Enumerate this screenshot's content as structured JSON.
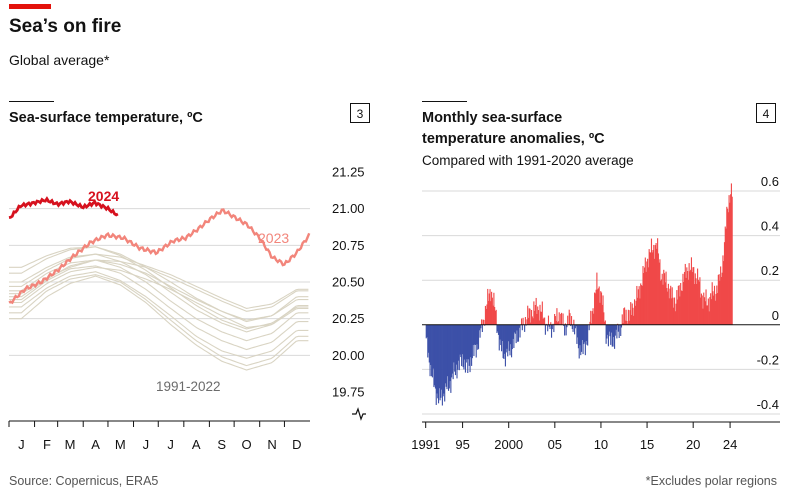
{
  "title": "Sea’s on fire",
  "subtitle": "Global average*",
  "source": "Source: Copernicus, ERA5",
  "footnote": "*Excludes polar regions",
  "colors": {
    "red_2024": "#d6111e",
    "red_2023": "#f2857b",
    "grey_years": "#d9d4c3",
    "positive": "#f04848",
    "negative": "#3c50a8",
    "accent": "#e3120b"
  },
  "chart_data": [
    {
      "type": "line",
      "panel_number": "3",
      "title": "Sea-surface temperature, ºC",
      "ylim": [
        19.75,
        21.25
      ],
      "y_ticks": [
        "21.25",
        "21.00",
        "20.75",
        "20.50",
        "20.25",
        "20.00",
        "19.75"
      ],
      "y_tick_values": [
        21.25,
        21.0,
        20.75,
        20.5,
        20.25,
        20.0,
        19.75
      ],
      "axis_break": true,
      "x_ticks": [
        "J",
        "F",
        "M",
        "A",
        "M",
        "J",
        "J",
        "A",
        "S",
        "O",
        "N",
        "D"
      ],
      "series": [
        {
          "name": "2024",
          "x": [
            1,
            15,
            32,
            46,
            60,
            74,
            91,
            105,
            121,
            134
          ],
          "values": [
            20.93,
            21.02,
            21.04,
            21.06,
            21.03,
            21.05,
            21.01,
            21.04,
            21.0,
            20.95
          ]
        },
        {
          "name": "2023",
          "x": [
            1,
            20,
            40,
            60,
            80,
            100,
            120,
            140,
            160,
            180,
            200,
            215,
            230,
            245,
            260,
            275,
            290,
            305,
            320,
            335,
            350,
            365
          ],
          "values": [
            20.35,
            20.45,
            20.5,
            20.58,
            20.68,
            20.77,
            20.82,
            20.8,
            20.73,
            20.7,
            20.78,
            20.8,
            20.86,
            20.93,
            20.99,
            20.94,
            20.89,
            20.8,
            20.67,
            20.62,
            20.7,
            20.82
          ]
        }
      ],
      "band": {
        "label": "1991-2022"
      },
      "band_lines": [
        [
          20.25,
          20.4,
          20.49,
          20.54,
          20.48,
          20.36,
          20.21,
          20.07,
          19.96,
          19.9,
          19.95,
          20.1
        ],
        [
          20.33,
          20.46,
          20.54,
          20.57,
          20.51,
          20.4,
          20.27,
          20.13,
          20.03,
          19.98,
          20.03,
          20.17
        ],
        [
          20.38,
          20.51,
          20.59,
          20.61,
          20.56,
          20.45,
          20.32,
          20.19,
          20.1,
          20.04,
          20.09,
          20.23
        ],
        [
          20.44,
          20.56,
          20.63,
          20.65,
          20.6,
          20.5,
          20.37,
          20.25,
          20.16,
          20.1,
          20.15,
          20.29
        ],
        [
          20.5,
          20.6,
          20.67,
          20.69,
          20.64,
          20.55,
          20.43,
          20.31,
          20.22,
          20.16,
          20.21,
          20.34
        ],
        [
          20.42,
          20.53,
          20.6,
          20.65,
          20.62,
          20.56,
          20.47,
          20.38,
          20.3,
          20.24,
          20.27,
          20.38
        ],
        [
          20.56,
          20.66,
          20.72,
          20.74,
          20.69,
          20.6,
          20.5,
          20.39,
          20.3,
          20.23,
          20.27,
          20.4
        ],
        [
          20.47,
          20.58,
          20.66,
          20.69,
          20.67,
          20.61,
          20.55,
          20.47,
          20.39,
          20.32,
          20.35,
          20.45
        ],
        [
          20.29,
          20.44,
          20.52,
          20.55,
          20.5,
          20.38,
          20.24,
          20.1,
          19.99,
          19.93,
          19.98,
          20.13
        ],
        [
          20.36,
          20.49,
          20.57,
          20.6,
          20.58,
          20.52,
          20.45,
          20.36,
          20.27,
          20.19,
          20.21,
          20.32
        ],
        [
          20.6,
          20.68,
          20.73,
          20.74,
          20.68,
          20.58,
          20.46,
          20.34,
          20.24,
          20.18,
          20.22,
          20.33
        ],
        [
          20.4,
          20.52,
          20.61,
          20.65,
          20.64,
          20.6,
          20.53,
          20.45,
          20.37,
          20.3,
          20.33,
          20.44
        ]
      ]
    },
    {
      "type": "bar",
      "panel_number": "4",
      "title_lines": [
        "Monthly sea-surface",
        "temperature anomalies, ºC"
      ],
      "subtitle": "Compared with 1991-2020 average",
      "ylim": [
        -0.45,
        0.68
      ],
      "y_ticks": [
        "0.6",
        "0.4",
        "0.2",
        "0",
        "-0.2",
        "-0.4"
      ],
      "y_tick_values": [
        0.6,
        0.4,
        0.2,
        0,
        -0.2,
        -0.4
      ],
      "x_ticks": [
        "1991",
        "95",
        "2000",
        "05",
        "10",
        "15",
        "20",
        "24"
      ],
      "x_tick_years": [
        1991,
        1995,
        2000,
        2005,
        2010,
        2015,
        2020,
        2024
      ],
      "x_range": [
        1990.6,
        2024.75
      ],
      "anomaly_keyframes": {
        "years": [
          1991.0,
          1991.5,
          1992.0,
          1992.5,
          1993.0,
          1993.5,
          1994.0,
          1994.5,
          1995.0,
          1995.5,
          1996.0,
          1996.5,
          1997.0,
          1997.5,
          1998.0,
          1998.5,
          1999.0,
          1999.5,
          2000.0,
          2000.5,
          2001.0,
          2001.5,
          2002.0,
          2002.5,
          2003.0,
          2003.5,
          2004.0,
          2004.5,
          2005.0,
          2005.5,
          2006.0,
          2006.5,
          2007.0,
          2007.5,
          2008.0,
          2008.5,
          2009.0,
          2009.5,
          2010.0,
          2010.5,
          2011.0,
          2011.5,
          2012.0,
          2012.5,
          2013.0,
          2013.5,
          2014.0,
          2014.5,
          2015.0,
          2015.5,
          2016.0,
          2016.5,
          2017.0,
          2017.5,
          2018.0,
          2018.5,
          2019.0,
          2019.5,
          2020.0,
          2020.5,
          2021.0,
          2021.5,
          2022.0,
          2022.5,
          2023.0,
          2023.3,
          2023.6,
          2023.8,
          2024.0,
          2024.3
        ],
        "values": [
          -0.08,
          -0.2,
          -0.3,
          -0.34,
          -0.3,
          -0.27,
          -0.22,
          -0.18,
          -0.16,
          -0.2,
          -0.14,
          -0.1,
          -0.02,
          0.08,
          0.16,
          0.06,
          -0.1,
          -0.14,
          -0.12,
          -0.08,
          -0.04,
          0.0,
          0.04,
          0.06,
          0.08,
          0.06,
          0.0,
          -0.02,
          0.02,
          0.05,
          -0.02,
          0.03,
          0.0,
          -0.1,
          -0.12,
          -0.06,
          0.06,
          0.18,
          0.14,
          -0.04,
          -0.08,
          -0.06,
          -0.02,
          0.05,
          0.04,
          0.09,
          0.14,
          0.22,
          0.3,
          0.34,
          0.36,
          0.22,
          0.2,
          0.14,
          0.1,
          0.16,
          0.22,
          0.26,
          0.24,
          0.2,
          0.12,
          0.1,
          0.14,
          0.16,
          0.24,
          0.34,
          0.5,
          0.56,
          0.6,
          0.58
        ]
      }
    }
  ]
}
